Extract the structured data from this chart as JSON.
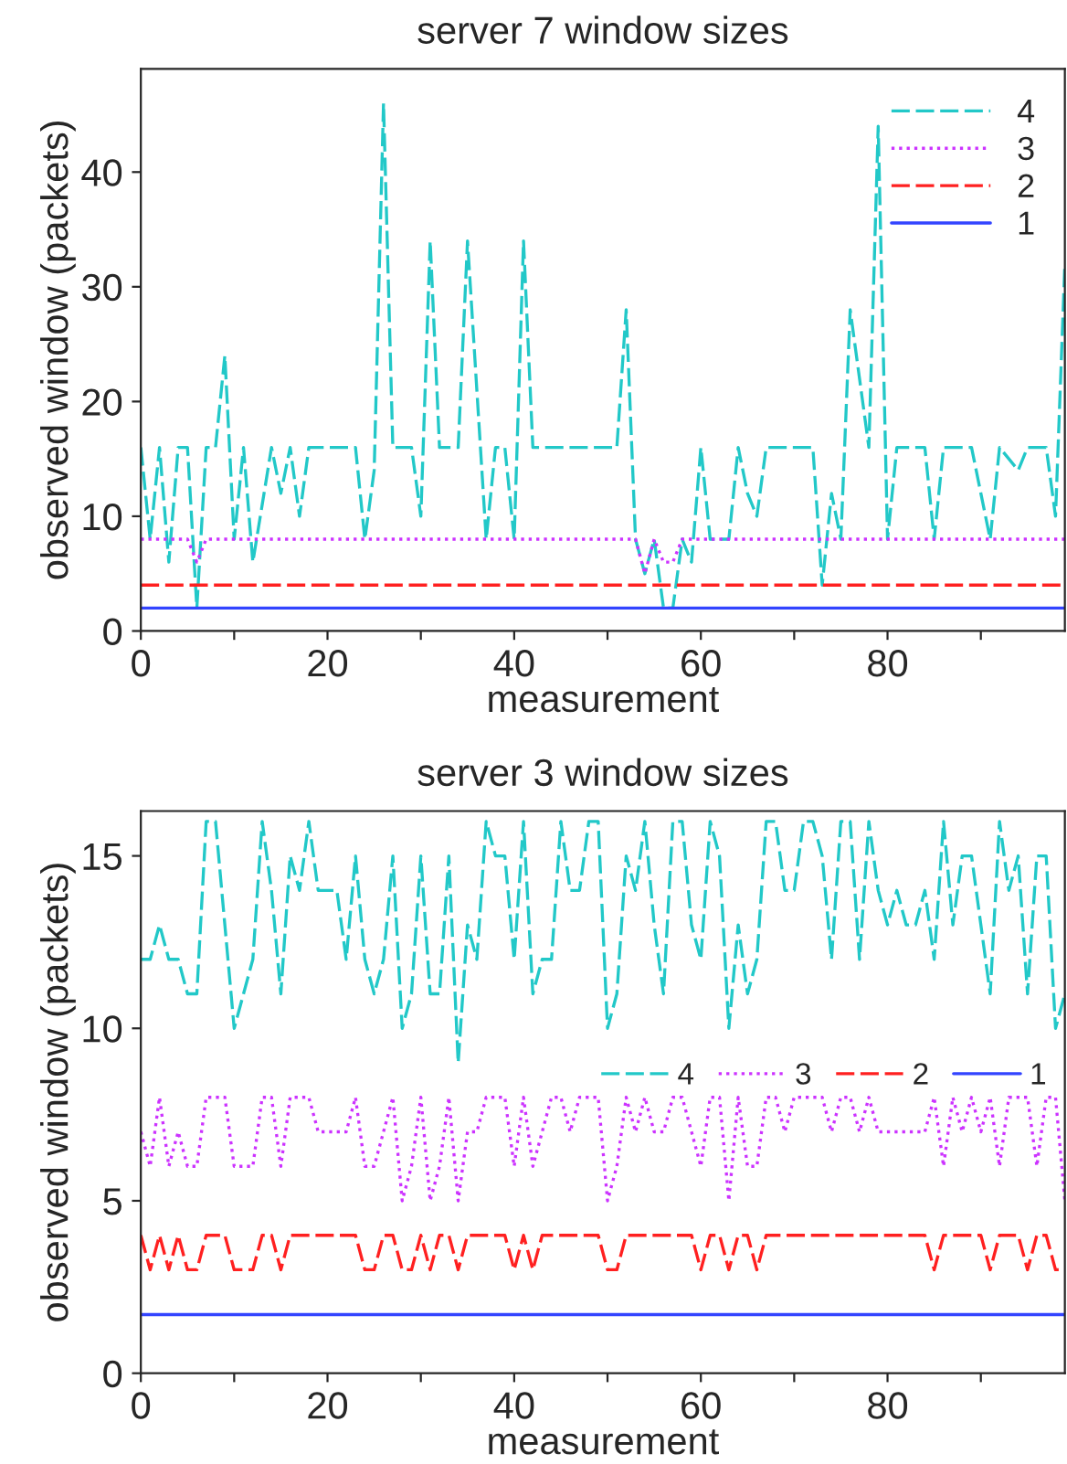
{
  "chart_data": [
    {
      "type": "line",
      "title": "server 7 window sizes",
      "xlabel": "measurement",
      "ylabel": "observed window (packets)",
      "x": [
        0,
        1,
        2,
        3,
        4,
        5,
        6,
        7,
        8,
        9,
        10,
        11,
        12,
        13,
        14,
        15,
        16,
        17,
        18,
        19,
        20,
        21,
        22,
        23,
        24,
        25,
        26,
        27,
        28,
        29,
        30,
        31,
        32,
        33,
        34,
        35,
        36,
        37,
        38,
        39,
        40,
        41,
        42,
        43,
        44,
        45,
        46,
        47,
        48,
        49,
        50,
        51,
        52,
        53,
        54,
        55,
        56,
        57,
        58,
        59,
        60,
        61,
        62,
        63,
        64,
        65,
        66,
        67,
        68,
        69,
        70,
        71,
        72,
        73,
        74,
        75,
        76,
        77,
        78,
        79,
        80,
        81,
        82,
        83,
        84,
        85,
        86,
        87,
        88,
        89,
        90,
        91,
        92,
        93,
        94,
        95,
        96,
        97,
        98,
        99
      ],
      "series": [
        {
          "name": "4",
          "color": "#22c8c8",
          "line_style": "dashed",
          "values": [
            16,
            8,
            16,
            6,
            16,
            16,
            2,
            16,
            16,
            24,
            8,
            16,
            6,
            11,
            16,
            12,
            16,
            10,
            16,
            16,
            16,
            16,
            16,
            16,
            8,
            14,
            46,
            16,
            16,
            16,
            10,
            34,
            16,
            16,
            16,
            34,
            21,
            8,
            16,
            16,
            8,
            34,
            16,
            16,
            16,
            16,
            16,
            16,
            16,
            16,
            16,
            16,
            28,
            8,
            5,
            8,
            2,
            2,
            8,
            6,
            16,
            8,
            8,
            8,
            16,
            12,
            10,
            16,
            16,
            16,
            16,
            16,
            16,
            4,
            12,
            8,
            28,
            22,
            16,
            44,
            8,
            16,
            16,
            16,
            16,
            8,
            16,
            16,
            16,
            16,
            12,
            8,
            16,
            15,
            14,
            16,
            16,
            16,
            10,
            32
          ]
        },
        {
          "name": "3",
          "color": "#cc33ff",
          "line_style": "dotted",
          "x": [
            0,
            5,
            6,
            7,
            53,
            54,
            55,
            56,
            57,
            58,
            99
          ],
          "values": [
            8,
            8,
            6,
            8,
            8,
            5,
            8,
            6,
            6,
            8,
            8
          ]
        },
        {
          "name": "2",
          "color": "#ff2020",
          "line_style": "dashed",
          "x": [
            0,
            99
          ],
          "values": [
            4,
            4
          ]
        },
        {
          "name": "1",
          "color": "#3344ff",
          "line_style": "solid",
          "x": [
            0,
            99
          ],
          "values": [
            2,
            2
          ]
        }
      ],
      "xlim": [
        0,
        99
      ],
      "xticks": [
        0,
        {
          "value": 10,
          "label": null
        },
        20,
        {
          "value": 30,
          "label": null
        },
        40,
        {
          "value": 50,
          "label": null
        },
        60,
        {
          "value": 70,
          "label": null
        },
        80,
        {
          "value": 90,
          "label": null
        }
      ],
      "ylim": [
        0,
        49
      ],
      "yticks": [
        0,
        10,
        20,
        30,
        40
      ],
      "grid": false,
      "legend": "top right",
      "marker": "none"
    },
    {
      "type": "line",
      "title": "server 3 window sizes",
      "xlabel": "measurement",
      "ylabel": "observed window (packets)",
      "x": [
        0,
        1,
        2,
        3,
        4,
        5,
        6,
        7,
        8,
        9,
        10,
        11,
        12,
        13,
        14,
        15,
        16,
        17,
        18,
        19,
        20,
        21,
        22,
        23,
        24,
        25,
        26,
        27,
        28,
        29,
        30,
        31,
        32,
        33,
        34,
        35,
        36,
        37,
        38,
        39,
        40,
        41,
        42,
        43,
        44,
        45,
        46,
        47,
        48,
        49,
        50,
        51,
        52,
        53,
        54,
        55,
        56,
        57,
        58,
        59,
        60,
        61,
        62,
        63,
        64,
        65,
        66,
        67,
        68,
        69,
        70,
        71,
        72,
        73,
        74,
        75,
        76,
        77,
        78,
        79,
        80,
        81,
        82,
        83,
        84,
        85,
        86,
        87,
        88,
        89,
        90,
        91,
        92,
        93,
        94,
        95,
        96,
        97,
        98,
        99
      ],
      "series": [
        {
          "name": "4",
          "color": "#22c8c8",
          "line_style": "dashed",
          "values": [
            12,
            12,
            13,
            12,
            12,
            11,
            11,
            16,
            16,
            13,
            10,
            11,
            12,
            16,
            14,
            11,
            15,
            14,
            16,
            14,
            14,
            14,
            12,
            15,
            12,
            11,
            12,
            15,
            10,
            11,
            15,
            11,
            11,
            15,
            9,
            13,
            12,
            16,
            15,
            15,
            12,
            16,
            11,
            12,
            12,
            16,
            14,
            14,
            16,
            16,
            10,
            11,
            15,
            14,
            16,
            13,
            11,
            16,
            16,
            13,
            12,
            16,
            15,
            10,
            13,
            11,
            12,
            16,
            16,
            14,
            14,
            16,
            16,
            15,
            12,
            16,
            16,
            12,
            16,
            14,
            13,
            14,
            13,
            13,
            14,
            12,
            16,
            13,
            15,
            15,
            13,
            11,
            16,
            14,
            15,
            11,
            15,
            15,
            10,
            11
          ]
        },
        {
          "name": "3",
          "color": "#cc33ff",
          "line_style": "dotted",
          "values": [
            7,
            6,
            8,
            6,
            7,
            6,
            6,
            8,
            8,
            8,
            6,
            6,
            6,
            8,
            8,
            6,
            8,
            8,
            8,
            7,
            7,
            7,
            7,
            8,
            6,
            6,
            7,
            8,
            5,
            6,
            8,
            5,
            6,
            8,
            5,
            7,
            7,
            8,
            8,
            8,
            6,
            8,
            6,
            7,
            8,
            8,
            7,
            8,
            8,
            8,
            5,
            6,
            8,
            7,
            8,
            7,
            7,
            8,
            8,
            7,
            6,
            8,
            8,
            5,
            8,
            6,
            6,
            8,
            8,
            7,
            8,
            8,
            8,
            8,
            7,
            8,
            8,
            7,
            8,
            7,
            7,
            7,
            7,
            7,
            7,
            8,
            6,
            8,
            7,
            8,
            7,
            8,
            6,
            8,
            8,
            8,
            6,
            8,
            8,
            5
          ]
        },
        {
          "name": "2",
          "color": "#ff2020",
          "line_style": "dashed",
          "values": [
            4,
            3,
            4,
            3,
            4,
            3,
            3,
            4,
            4,
            4,
            3,
            3,
            3,
            4,
            4,
            3,
            4,
            4,
            4,
            4,
            4,
            4,
            4,
            4,
            3,
            3,
            4,
            4,
            3,
            3,
            4,
            3,
            4,
            4,
            3,
            4,
            4,
            4,
            4,
            4,
            3,
            4,
            3,
            4,
            4,
            4,
            4,
            4,
            4,
            4,
            3,
            3,
            4,
            4,
            4,
            4,
            4,
            4,
            4,
            4,
            3,
            4,
            4,
            3,
            4,
            4,
            3,
            4,
            4,
            4,
            4,
            4,
            4,
            4,
            4,
            4,
            4,
            4,
            4,
            4,
            4,
            4,
            4,
            4,
            4,
            3,
            4,
            4,
            4,
            4,
            4,
            3,
            4,
            4,
            4,
            3,
            4,
            4,
            3,
            3
          ]
        },
        {
          "name": "1",
          "color": "#3344ff",
          "line_style": "solid",
          "x": [
            0,
            99
          ],
          "values": [
            1.7,
            1.7
          ]
        }
      ],
      "xlim": [
        0,
        99
      ],
      "xticks": [
        0,
        {
          "value": 10,
          "label": null
        },
        20,
        {
          "value": 30,
          "label": null
        },
        40,
        {
          "value": 50,
          "label": null
        },
        60,
        {
          "value": 70,
          "label": null
        },
        80,
        {
          "value": 90,
          "label": null
        }
      ],
      "ylim": [
        0,
        16.3
      ],
      "yticks": [
        0,
        5,
        10,
        15
      ],
      "grid": false,
      "legend": "right",
      "marker": "none"
    }
  ]
}
